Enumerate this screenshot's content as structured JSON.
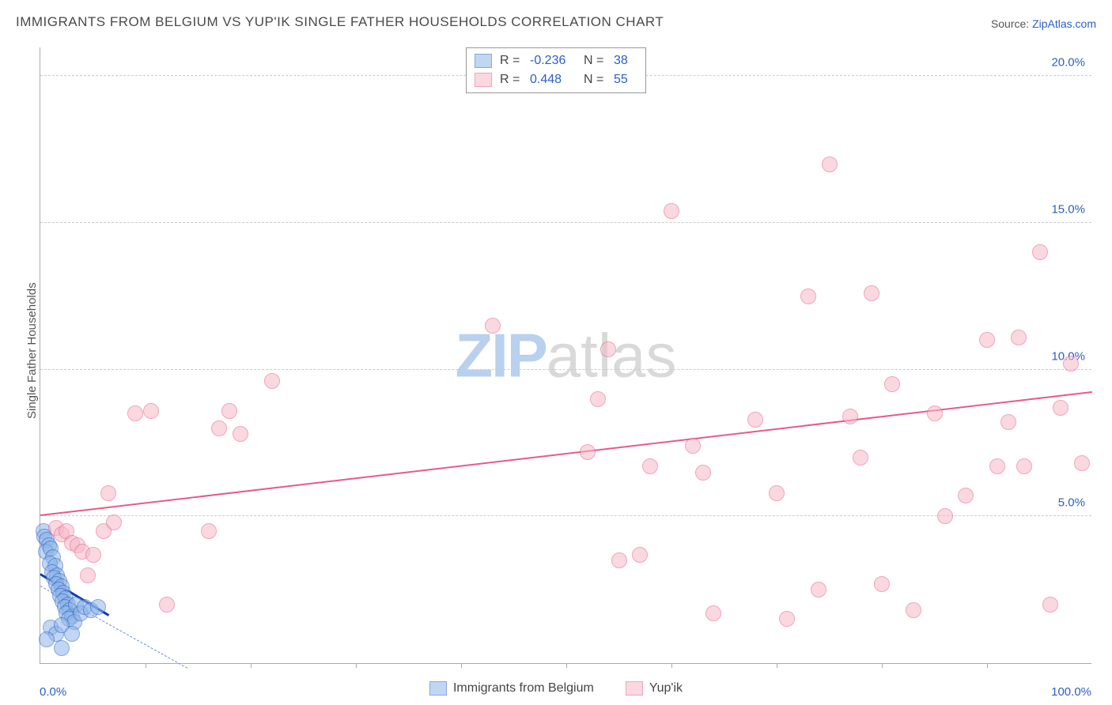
{
  "title": "IMMIGRANTS FROM BELGIUM VS YUP'IK SINGLE FATHER HOUSEHOLDS CORRELATION CHART",
  "source_label": "Source:",
  "source_value": "ZipAtlas.com",
  "ylabel": "Single Father Households",
  "watermark": {
    "zip": "ZIP",
    "atlas": "atlas"
  },
  "chart": {
    "type": "scatter",
    "xlim": [
      0,
      100
    ],
    "ylim": [
      0,
      21
    ],
    "x_ticks_minor_step": 10,
    "x_tick_labels": {
      "min": "0.0%",
      "max": "100.0%"
    },
    "y_ticks": [
      5,
      10,
      15,
      20
    ],
    "y_tick_labels": [
      "5.0%",
      "10.0%",
      "15.0%",
      "20.0%"
    ],
    "background_color": "#ffffff",
    "grid_color": "#cccccc",
    "axis_color": "#aaaaaa",
    "tick_label_color": "#2b5fc4",
    "marker_radius": 10,
    "marker_border_width": 1.5,
    "dashed_line": {
      "x1": 0,
      "y1": 2.6,
      "x2": 14,
      "y2": -0.2,
      "color": "#6a8fd8",
      "width": 1
    }
  },
  "series": [
    {
      "name": "Immigrants from Belgium",
      "fill_color": "#8fb6e8",
      "fill_opacity": 0.55,
      "border_color": "#2b5fc4",
      "R": "-0.236",
      "N": "38",
      "trend": {
        "x1": 0,
        "y1": 3.0,
        "x2": 6.5,
        "y2": 1.6,
        "color": "#0f3fa8",
        "width": 3
      },
      "points": [
        [
          0.3,
          4.5
        ],
        [
          0.4,
          4.3
        ],
        [
          0.6,
          4.2
        ],
        [
          0.8,
          4.0
        ],
        [
          0.5,
          3.8
        ],
        [
          1.0,
          3.9
        ],
        [
          1.2,
          3.6
        ],
        [
          0.9,
          3.4
        ],
        [
          1.4,
          3.3
        ],
        [
          1.1,
          3.1
        ],
        [
          1.6,
          3.0
        ],
        [
          1.3,
          2.9
        ],
        [
          1.8,
          2.8
        ],
        [
          1.5,
          2.7
        ],
        [
          2.0,
          2.6
        ],
        [
          1.7,
          2.5
        ],
        [
          2.2,
          2.4
        ],
        [
          1.9,
          2.3
        ],
        [
          2.4,
          2.2
        ],
        [
          2.1,
          2.1
        ],
        [
          2.6,
          2.0
        ],
        [
          2.3,
          1.9
        ],
        [
          2.8,
          1.8
        ],
        [
          2.5,
          1.7
        ],
        [
          3.0,
          1.6
        ],
        [
          2.7,
          1.5
        ],
        [
          3.4,
          2.0
        ],
        [
          3.2,
          1.4
        ],
        [
          3.8,
          1.7
        ],
        [
          1.0,
          1.2
        ],
        [
          1.5,
          1.0
        ],
        [
          2.0,
          1.3
        ],
        [
          4.2,
          1.9
        ],
        [
          4.8,
          1.8
        ],
        [
          5.5,
          1.9
        ],
        [
          0.6,
          0.8
        ],
        [
          2.0,
          0.5
        ],
        [
          3.0,
          1.0
        ]
      ]
    },
    {
      "name": "Yup'ik",
      "fill_color": "#f7b9c8",
      "fill_opacity": 0.55,
      "border_color": "#e85a87",
      "R": "0.448",
      "N": "55",
      "trend": {
        "x1": 0,
        "y1": 5.0,
        "x2": 100,
        "y2": 9.2,
        "color": "#e85a87",
        "width": 2.5
      },
      "points": [
        [
          1.5,
          4.6
        ],
        [
          2.0,
          4.4
        ],
        [
          2.5,
          4.5
        ],
        [
          3.0,
          4.1
        ],
        [
          3.5,
          4.0
        ],
        [
          4.0,
          3.8
        ],
        [
          5.0,
          3.7
        ],
        [
          6.0,
          4.5
        ],
        [
          7.0,
          4.8
        ],
        [
          4.5,
          3.0
        ],
        [
          6.5,
          5.8
        ],
        [
          9.0,
          8.5
        ],
        [
          10.5,
          8.6
        ],
        [
          12.0,
          2.0
        ],
        [
          16.0,
          4.5
        ],
        [
          17.0,
          8.0
        ],
        [
          18.0,
          8.6
        ],
        [
          19.0,
          7.8
        ],
        [
          22.0,
          9.6
        ],
        [
          43.0,
          11.5
        ],
        [
          52.0,
          7.2
        ],
        [
          53.0,
          9.0
        ],
        [
          54.0,
          10.7
        ],
        [
          55.0,
          3.5
        ],
        [
          58.0,
          6.7
        ],
        [
          57.0,
          3.7
        ],
        [
          60.0,
          15.4
        ],
        [
          62.0,
          7.4
        ],
        [
          64.0,
          1.7
        ],
        [
          63.0,
          6.5
        ],
        [
          68.0,
          8.3
        ],
        [
          70.0,
          5.8
        ],
        [
          71.0,
          1.5
        ],
        [
          73.0,
          12.5
        ],
        [
          74.0,
          2.5
        ],
        [
          75.0,
          17.0
        ],
        [
          77.0,
          8.4
        ],
        [
          78.0,
          7.0
        ],
        [
          79.0,
          12.6
        ],
        [
          80.0,
          2.7
        ],
        [
          81.0,
          9.5
        ],
        [
          83.0,
          1.8
        ],
        [
          85.0,
          8.5
        ],
        [
          86.0,
          5.0
        ],
        [
          88.0,
          5.7
        ],
        [
          90.0,
          11.0
        ],
        [
          91.0,
          6.7
        ],
        [
          92.0,
          8.2
        ],
        [
          93.0,
          11.1
        ],
        [
          93.5,
          6.7
        ],
        [
          95.0,
          14.0
        ],
        [
          96.0,
          2.0
        ],
        [
          97.0,
          8.7
        ],
        [
          98.0,
          10.2
        ],
        [
          99.0,
          6.8
        ]
      ]
    }
  ]
}
